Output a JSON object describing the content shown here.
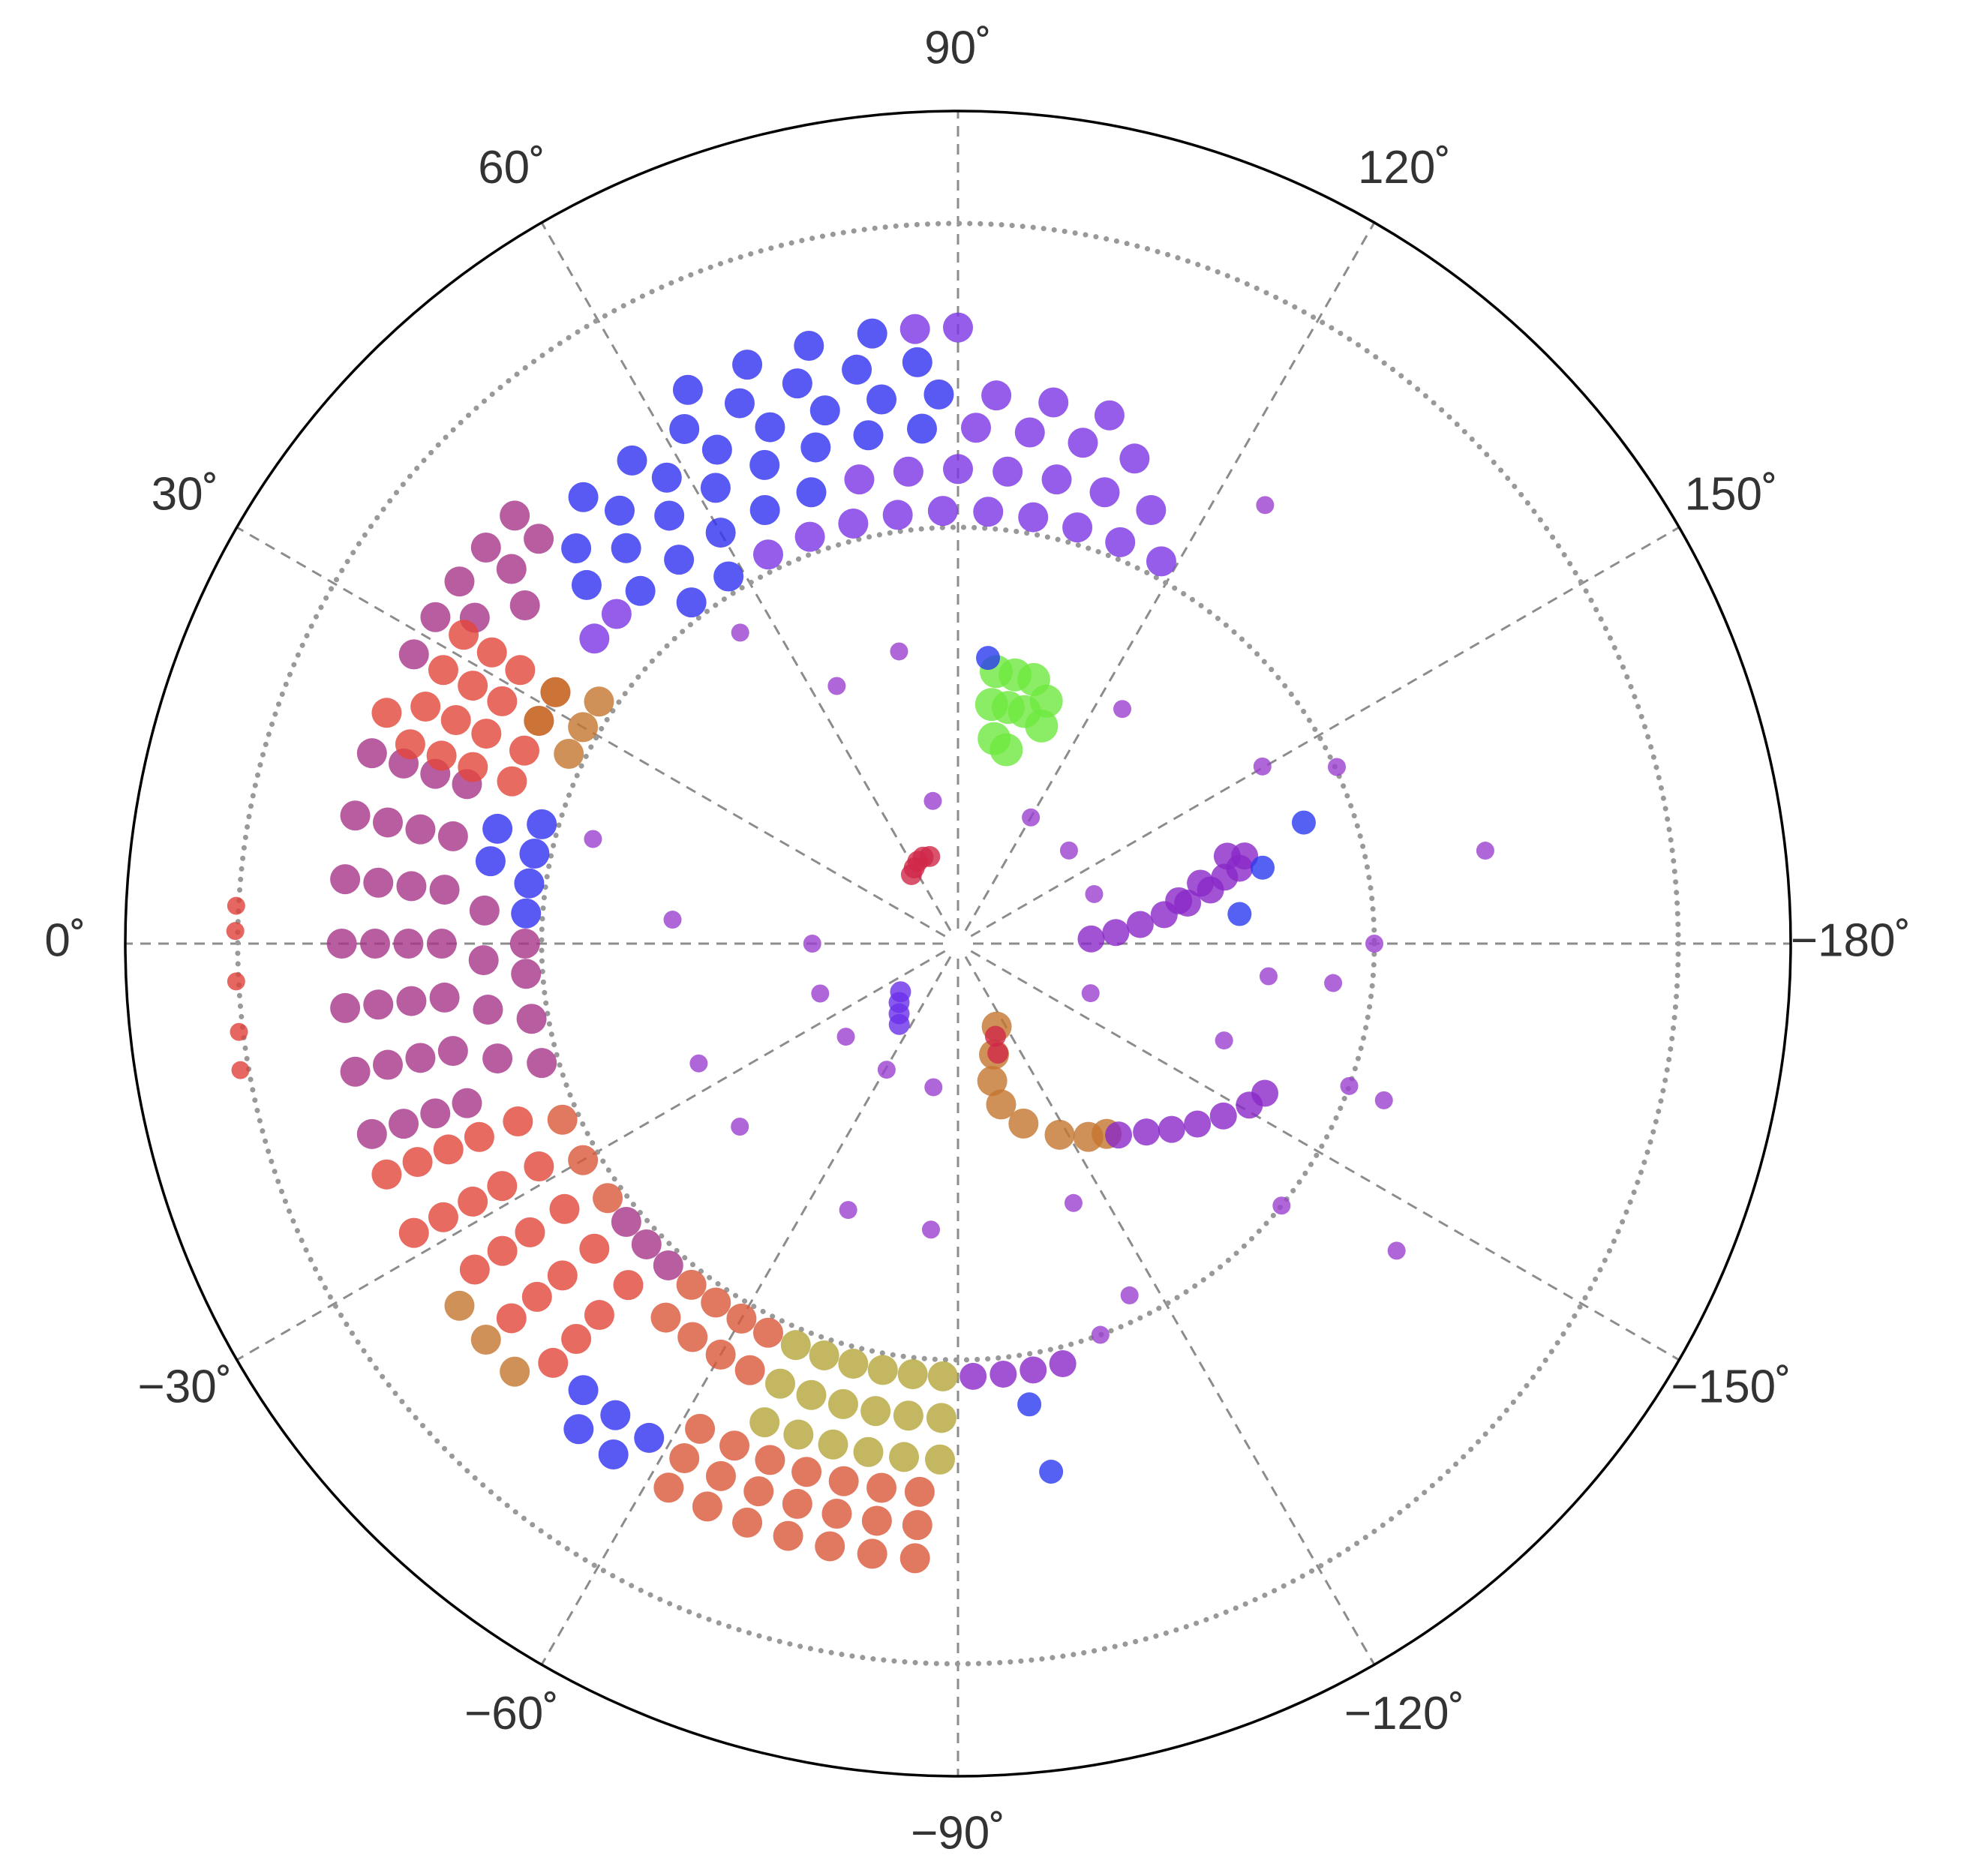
{
  "chart_data": {
    "type": "polar-scatter",
    "theta_zero": "W",
    "theta_direction": "clockwise",
    "rlim": [
      0,
      1
    ],
    "rticks": [
      0.5,
      0.865
    ],
    "thetaticks": [
      {
        "value": 0,
        "label": "0˚"
      },
      {
        "value": 30,
        "label": "30˚"
      },
      {
        "value": 60,
        "label": "60˚"
      },
      {
        "value": 90,
        "label": "90˚"
      },
      {
        "value": 120,
        "label": "120˚"
      },
      {
        "value": 150,
        "label": "150˚"
      },
      {
        "value": -180,
        "label": "−180˚"
      },
      {
        "value": -150,
        "label": "−150˚"
      },
      {
        "value": -120,
        "label": "−120˚"
      },
      {
        "value": -90,
        "label": "−90˚"
      },
      {
        "value": -60,
        "label": "−60˚"
      },
      {
        "value": -30,
        "label": "−30˚"
      }
    ],
    "series": [
      {
        "color": "#3030f0",
        "marker_size": 20,
        "theta": [
          64,
          70,
          76,
          82,
          50,
          56,
          62,
          68,
          74,
          80,
          86,
          46,
          52,
          58,
          64,
          70,
          76,
          82,
          88,
          44,
          50,
          56,
          62,
          68,
          74,
          80,
          86,
          48,
          54,
          60,
          66,
          72,
          52,
          58,
          4,
          8,
          12,
          16,
          10,
          14,
          -50,
          -54,
          -58,
          -52,
          -56
        ],
        "r": [
          0.74,
          0.74,
          0.74,
          0.74,
          0.7,
          0.7,
          0.7,
          0.7,
          0.7,
          0.7,
          0.7,
          0.66,
          0.66,
          0.66,
          0.66,
          0.66,
          0.66,
          0.66,
          0.66,
          0.62,
          0.62,
          0.62,
          0.62,
          0.62,
          0.62,
          0.62,
          0.62,
          0.57,
          0.57,
          0.57,
          0.57,
          0.57,
          0.52,
          0.52,
          0.52,
          0.52,
          0.52,
          0.52,
          0.57,
          0.57,
          0.7,
          0.7,
          0.7,
          0.74,
          0.74
        ]
      },
      {
        "color": "#7a35e5",
        "marker_size": 20,
        "theta": [
          64,
          70,
          76,
          82,
          88,
          94,
          100,
          106,
          112,
          118,
          78,
          84,
          90,
          96,
          102,
          108,
          114,
          92,
          98,
          104,
          110,
          94,
          100,
          106,
          86,
          90,
          40,
          44
        ],
        "r": [
          0.52,
          0.52,
          0.52,
          0.52,
          0.52,
          0.52,
          0.52,
          0.52,
          0.52,
          0.52,
          0.57,
          0.57,
          0.57,
          0.57,
          0.57,
          0.57,
          0.57,
          0.62,
          0.62,
          0.62,
          0.62,
          0.66,
          0.66,
          0.66,
          0.74,
          0.74,
          0.57,
          0.57
        ]
      },
      {
        "color": "#a8348a",
        "marker_size": 20,
        "theta": [
          28,
          32,
          36,
          40,
          44,
          34,
          40,
          44,
          38,
          -18,
          -12,
          -6,
          0,
          6,
          12,
          18,
          -18,
          -12,
          -6,
          0,
          6,
          12,
          18,
          -18,
          -12,
          -6,
          0,
          6,
          12,
          18,
          -18,
          -12,
          -6,
          0,
          6,
          12,
          18,
          -14,
          -8,
          -2,
          4,
          -16,
          -10,
          -4,
          0,
          -40,
          -44,
          -48
        ],
        "r": [
          0.74,
          0.74,
          0.74,
          0.74,
          0.74,
          0.7,
          0.7,
          0.7,
          0.66,
          0.62,
          0.62,
          0.62,
          0.62,
          0.62,
          0.62,
          0.62,
          0.66,
          0.66,
          0.66,
          0.66,
          0.66,
          0.66,
          0.66,
          0.7,
          0.7,
          0.7,
          0.7,
          0.7,
          0.7,
          0.7,
          0.74,
          0.74,
          0.74,
          0.74,
          0.74,
          0.74,
          0.74,
          0.57,
          0.57,
          0.57,
          0.57,
          0.52,
          0.52,
          0.52,
          0.52,
          0.52,
          0.52,
          0.52
        ]
      },
      {
        "color": "#e2463a",
        "marker_size": 20,
        "theta": [
          20,
          24,
          28,
          32,
          20,
          24,
          28,
          32,
          20,
          24,
          28,
          32,
          20,
          24,
          28,
          32,
          22,
          -22,
          -28,
          -34,
          -40,
          -46,
          -22,
          -28,
          -34,
          -40,
          -46,
          -22,
          -28,
          -34,
          -40,
          -46,
          -22,
          -28,
          -34,
          -40,
          -46,
          -22,
          -28
        ],
        "r": [
          0.57,
          0.57,
          0.57,
          0.57,
          0.62,
          0.62,
          0.62,
          0.62,
          0.66,
          0.66,
          0.66,
          0.66,
          0.7,
          0.7,
          0.7,
          0.7,
          0.74,
          0.57,
          0.57,
          0.57,
          0.57,
          0.57,
          0.62,
          0.62,
          0.62,
          0.62,
          0.62,
          0.66,
          0.66,
          0.66,
          0.66,
          0.66,
          0.7,
          0.7,
          0.7,
          0.7,
          0.7,
          0.74,
          0.74
        ]
      },
      {
        "color": "#d9583a",
        "marker_size": 20,
        "theta": [
          -62,
          -66,
          -70,
          -74,
          -78,
          -82,
          -86,
          -62,
          -66,
          -70,
          -74,
          -78,
          -82,
          -86,
          -62,
          -66,
          -70,
          -74,
          -78,
          -82,
          -86,
          -52,
          -56,
          -60,
          -64,
          -52,
          -56,
          -60,
          -64,
          -24,
          -30,
          -36
        ],
        "r": [
          0.66,
          0.66,
          0.66,
          0.66,
          0.66,
          0.66,
          0.66,
          0.7,
          0.7,
          0.7,
          0.7,
          0.7,
          0.7,
          0.7,
          0.74,
          0.74,
          0.74,
          0.74,
          0.74,
          0.74,
          0.74,
          0.52,
          0.52,
          0.52,
          0.52,
          0.57,
          0.57,
          0.57,
          0.57,
          0.52,
          0.52,
          0.52
        ]
      },
      {
        "color": "#b5a53a",
        "marker_size": 20,
        "theta": [
          -68,
          -72,
          -76,
          -80,
          -84,
          -88,
          -68,
          -72,
          -76,
          -80,
          -84,
          -88,
          -68,
          -72,
          -76,
          -80,
          -84,
          -88
        ],
        "r": [
          0.52,
          0.52,
          0.52,
          0.52,
          0.52,
          0.52,
          0.57,
          0.57,
          0.57,
          0.57,
          0.57,
          0.57,
          0.62,
          0.62,
          0.62,
          0.62,
          0.62,
          0.62
        ]
      },
      {
        "color": "#c4752e",
        "marker_size": 20,
        "theta": [
          -36,
          -40,
          -44,
          26,
          30,
          34,
          28,
          32,
          -115,
          -108,
          -104,
          -105,
          -110,
          -118,
          -124,
          -128
        ],
        "r": [
          0.74,
          0.74,
          0.74,
          0.52,
          0.52,
          0.52,
          0.57,
          0.57,
          0.11,
          0.14,
          0.17,
          0.2,
          0.23,
          0.26,
          0.28,
          0.29
        ]
      },
      {
        "color": "#8a28c8",
        "marker_size": 18,
        "theta": [
          178,
          176,
          174,
          172,
          170,
          168,
          166,
          165,
          163,
          162,
          166,
          169,
          -130,
          -135,
          -139,
          -143,
          -147,
          -151,
          -154,
          -92,
          -96,
          -100,
          -104
        ],
        "r": [
          0.16,
          0.19,
          0.22,
          0.25,
          0.28,
          0.31,
          0.33,
          0.35,
          0.36,
          0.34,
          0.3,
          0.27,
          0.3,
          0.32,
          0.34,
          0.36,
          0.38,
          0.4,
          0.41,
          0.52,
          0.52,
          0.52,
          0.52
        ]
      },
      {
        "color": "#6ee840",
        "marker_size": 22,
        "theta": [
          98,
          102,
          106,
          110,
          98,
          102,
          106,
          111,
          100,
          104
        ],
        "r": [
          0.33,
          0.33,
          0.33,
          0.31,
          0.29,
          0.29,
          0.29,
          0.28,
          0.25,
          0.24
        ]
      },
      {
        "color": "#d02848",
        "marker_size": 14,
        "theta": [
          56,
          60,
          64,
          68,
          72,
          -110,
          -112
        ],
        "r": [
          0.1,
          0.105,
          0.11,
          0.112,
          0.11,
          0.14,
          0.12
        ]
      },
      {
        "color": "#e0403a",
        "marker_size": 12,
        "theta": [
          3,
          1,
          -3,
          -7,
          -10
        ],
        "r": [
          0.868,
          0.868,
          0.868,
          0.87,
          0.875
        ]
      },
      {
        "color": "#6a30e8",
        "marker_size": 14,
        "theta": [
          -40,
          -45,
          -50,
          -54
        ],
        "r": [
          0.09,
          0.1,
          0.11,
          0.12
        ]
      },
      {
        "color": "#9a40d0",
        "marker_size": 12,
        "theta": [
          125,
          170,
          -145,
          180,
          -174,
          16,
          55,
          4.8,
          -24.8,
          -40,
          -67.6,
          -84.6,
          -114,
          -116,
          -110,
          -141,
          -159.8,
          64.8,
          78.6,
          80,
          0,
          -19.9,
          -39.7,
          -60.5,
          -80.3,
          160,
          -159.5,
          140,
          120,
          125,
          155,
          149.8,
          -174,
          -160,
          -160
        ],
        "r": [
          0.643,
          0.643,
          0.643,
          0.5,
          0.453,
          0.456,
          0.456,
          0.344,
          0.343,
          0.342,
          0.346,
          0.345,
          0.341,
          0.47,
          0.5,
          0.5,
          0.545,
          0.342,
          0.358,
          0.174,
          0.175,
          0.176,
          0.175,
          0.174,
          0.175,
          0.174,
          0.17,
          0.174,
          0.175,
          0.344,
          0.502,
          0.423,
          0.375,
          0.34,
          0.5
        ]
      },
      {
        "color": "#2a3af0",
        "marker_size": 16,
        "theta": [
          160.7,
          -98.8,
          -100,
          96,
          166,
          174
        ],
        "r": [
          0.44,
          0.56,
          0.644,
          0.345,
          0.377,
          0.34
        ]
      }
    ]
  }
}
